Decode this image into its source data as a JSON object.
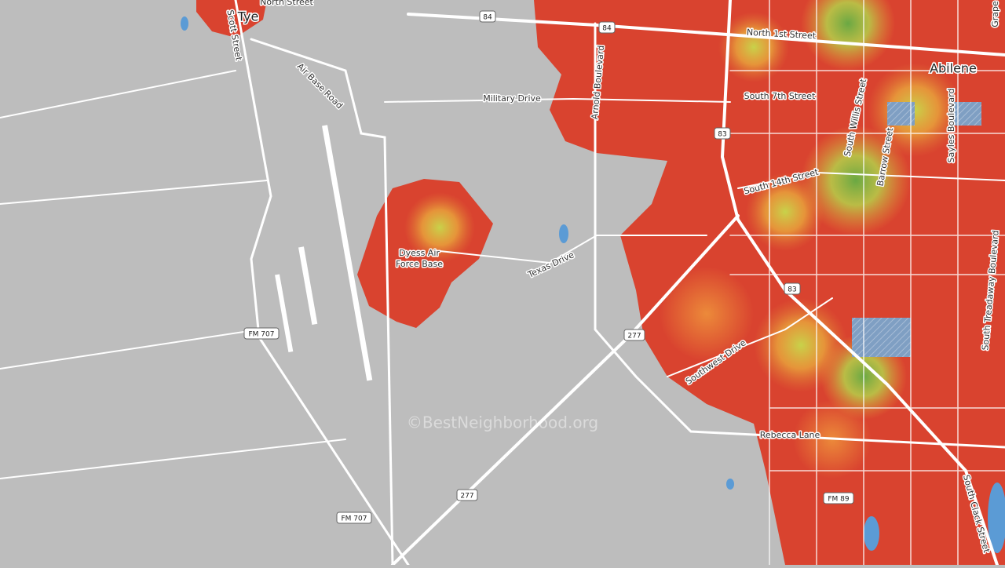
{
  "map": {
    "place_labels": [
      "Tye",
      "Abilene"
    ],
    "base_label": {
      "lines": [
        "Dyess Air",
        "Force Base"
      ]
    },
    "street_labels": [
      "North Street",
      "Scott Street",
      "Air Base Road",
      "North 1st Street",
      "Military Drive",
      "Arnold Boulevard",
      "South 7th Street",
      "South Willis Street",
      "Barrow Street",
      "Sayles Boulevard",
      "Grape",
      "South 14th Street",
      "Texas Drive",
      "Southwest Drive",
      "South Treadaway Boulevard",
      "Rebecca Lane",
      "South Clack Street"
    ],
    "shields": [
      "84",
      "84",
      "83",
      "83",
      "277",
      "277",
      "FM 707",
      "FM 707",
      "FM 89"
    ],
    "watermark": "©BestNeighborhood.org"
  }
}
